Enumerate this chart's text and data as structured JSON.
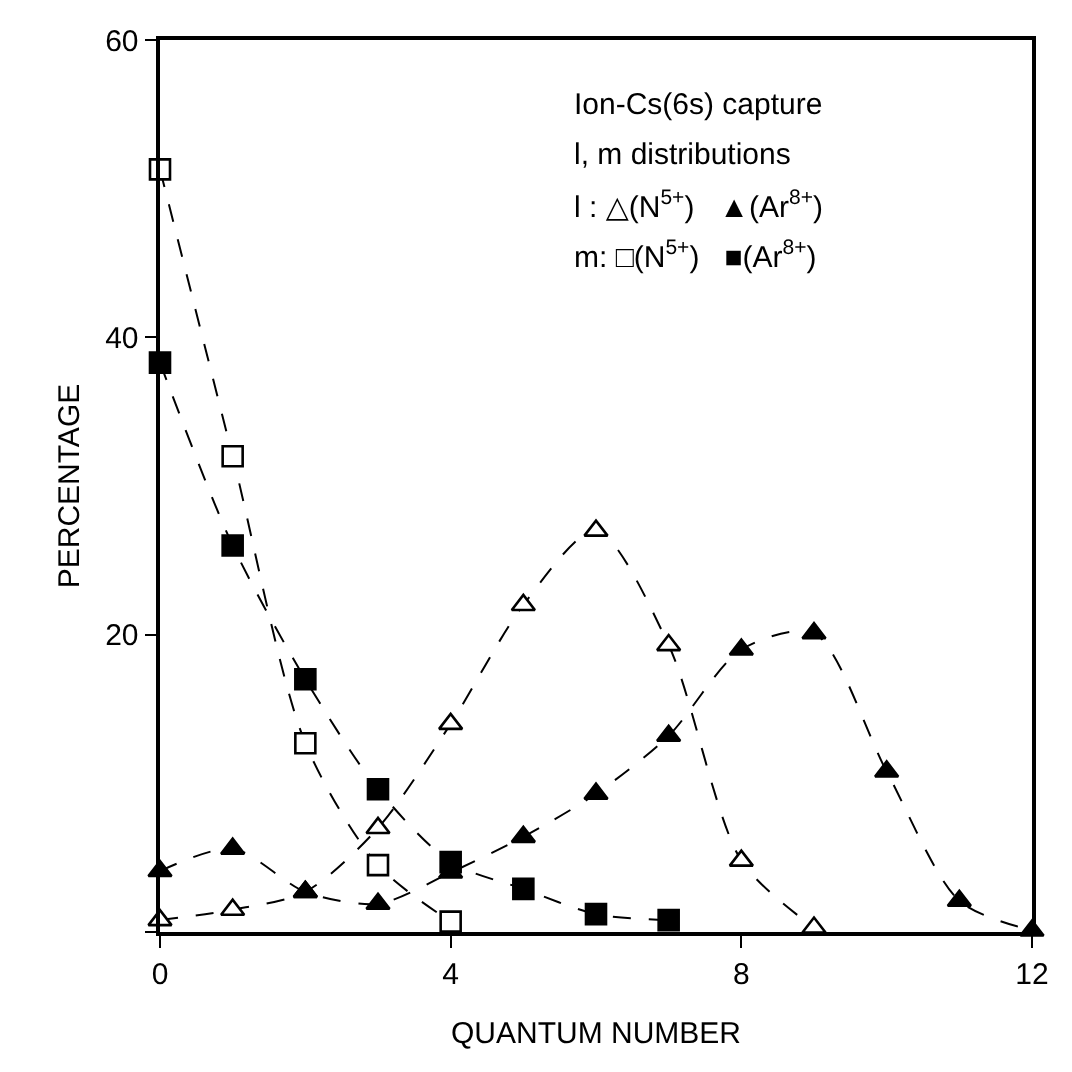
{
  "chart_data": {
    "type": "line",
    "xlabel": "QUANTUM NUMBER",
    "ylabel": "PERCENTAGE",
    "xlim": [
      0,
      12
    ],
    "ylim": [
      0,
      60
    ],
    "xticks": [
      0,
      4,
      8,
      12
    ],
    "yticks": [
      {
        "value": 0,
        "label": null
      },
      20,
      40,
      60
    ],
    "grid": false,
    "line_style": "dashed",
    "annotations": [
      "Ion-Cs(6s) capture",
      "l, m distributions",
      "l : △(N$^{5+}$)   ▲(Ar$^{8+}$)",
      "m: □(N$^{5+}$)   ■(Ar$^{8+}$)"
    ],
    "series": [
      {
        "color": "#ffffff",
        "marker": "triangle",
        "x": [
          0,
          1,
          2,
          3,
          4,
          5,
          6,
          7,
          8,
          9
        ],
        "values": [
          0.8,
          1.5,
          2.7,
          7,
          14,
          22,
          27,
          19.3,
          4.8,
          0.3
        ]
      },
      {
        "color": "#000000",
        "marker": "triangle",
        "x": [
          0,
          1,
          2,
          3,
          4,
          5,
          6,
          7,
          8,
          9,
          10,
          11,
          12
        ],
        "values": [
          4.1,
          5.6,
          2.7,
          1.9,
          4,
          6.4,
          9.3,
          13.2,
          19,
          20.1,
          10.8,
          2.1,
          0.1
        ]
      },
      {
        "color": "#ffffff",
        "marker": "square",
        "x": [
          0,
          1,
          2,
          3,
          4
        ],
        "values": [
          51.3,
          32,
          12.7,
          4.5,
          0.7
        ]
      },
      {
        "color": "#000000",
        "marker": "square",
        "x": [
          0,
          1,
          2,
          3,
          4,
          5,
          6,
          7
        ],
        "values": [
          38.3,
          26,
          17,
          9.6,
          4.7,
          2.9,
          1.2,
          0.8
        ]
      }
    ]
  }
}
